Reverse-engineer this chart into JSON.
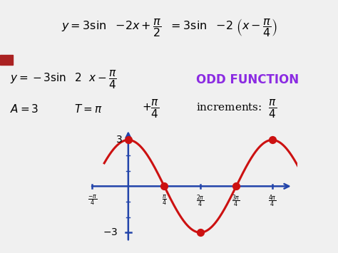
{
  "blue_bar_color": "#4a7abf",
  "red_bar_color": "#aa2222",
  "odd_function_color": "#8b2be2",
  "curve_color": "#cc1111",
  "dot_color": "#cc1111",
  "axis_color": "#2244aa",
  "amplitude": 3,
  "phase_shift": 0.7853981633974483,
  "background_color": "#ffffff",
  "top_bg_color": "#f0f0f0",
  "pi": 3.141592653589793
}
